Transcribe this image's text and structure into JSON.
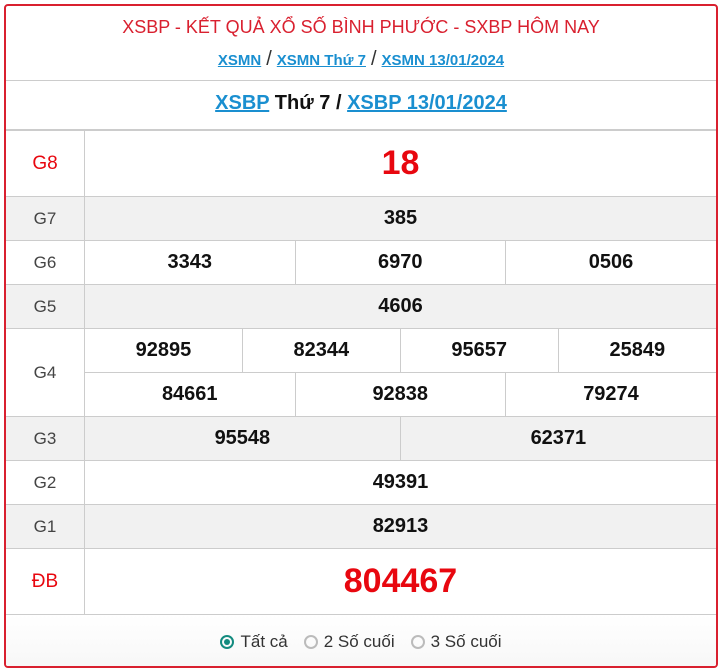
{
  "header": {
    "title": "XSBP - KẾT QUẢ XỔ SỐ BÌNH PHƯỚC - SXBP HÔM NAY",
    "breadcrumbs": [
      "XSMN",
      "XSMN Thứ 7",
      "XSMN 13/01/2024"
    ],
    "separator": "/"
  },
  "subheader": {
    "link1": "XSBP",
    "day": " Thứ 7 / ",
    "link2": "XSBP 13/01/2024"
  },
  "prizes": {
    "g8": {
      "label": "G8",
      "numbers": [
        "18"
      ]
    },
    "g7": {
      "label": "G7",
      "numbers": [
        "385"
      ]
    },
    "g6": {
      "label": "G6",
      "numbers": [
        "3343",
        "6970",
        "0506"
      ]
    },
    "g5": {
      "label": "G5",
      "numbers": [
        "4606"
      ]
    },
    "g4": {
      "label": "G4",
      "numbers": [
        "92895",
        "82344",
        "95657",
        "25849",
        "84661",
        "92838",
        "79274"
      ]
    },
    "g3": {
      "label": "G3",
      "numbers": [
        "95548",
        "62371"
      ]
    },
    "g2": {
      "label": "G2",
      "numbers": [
        "49391"
      ]
    },
    "g1": {
      "label": "G1",
      "numbers": [
        "82913"
      ]
    },
    "db": {
      "label": "ĐB",
      "numbers": [
        "804467"
      ]
    }
  },
  "filter": {
    "options": [
      "Tất cả",
      "2 Số cuối",
      "3 Số cuối"
    ],
    "selected": "Tất cả"
  },
  "colors": {
    "accent": "#d9202f",
    "link": "#1a8fd0",
    "prize": "#e8070f",
    "radio": "#138b7f"
  }
}
